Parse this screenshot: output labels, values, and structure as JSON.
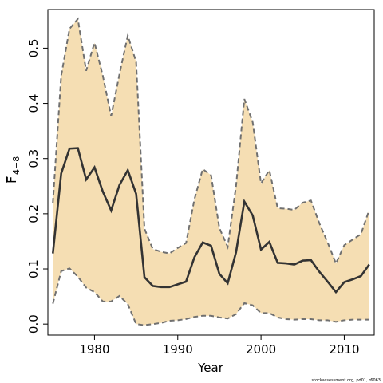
{
  "chart_data": {
    "type": "area",
    "xlabel": "Year",
    "ylabel_main": "F",
    "ylabel_sub": "4−8",
    "credit": "stockassessment.org, pd01, r6063",
    "xlim": [
      1974.4,
      2013.6
    ],
    "ylim": [
      -0.02,
      0.57
    ],
    "x_ticks": [
      1980,
      1990,
      2000,
      2010
    ],
    "y_ticks": [
      0.0,
      0.1,
      0.2,
      0.3,
      0.4,
      0.5
    ],
    "y_tick_labels": [
      "0.0",
      "0.1",
      "0.2",
      "0.3",
      "0.4",
      "0.5"
    ],
    "colors": {
      "band": "#f5deb3",
      "bound": "#707070",
      "estimate": "#333333"
    },
    "years": [
      1975,
      1976,
      1977,
      1978,
      1979,
      1980,
      1981,
      1982,
      1983,
      1984,
      1985,
      1986,
      1987,
      1988,
      1989,
      1990,
      1991,
      1992,
      1993,
      1994,
      1995,
      1996,
      1997,
      1998,
      1999,
      2000,
      2001,
      2002,
      2003,
      2004,
      2005,
      2006,
      2007,
      2008,
      2009,
      2010,
      2011,
      2012,
      2013
    ],
    "series": [
      {
        "role": "estimate",
        "values": [
          0.128,
          0.273,
          0.318,
          0.319,
          0.262,
          0.284,
          0.24,
          0.206,
          0.252,
          0.279,
          0.236,
          0.085,
          0.069,
          0.067,
          0.067,
          0.072,
          0.077,
          0.121,
          0.148,
          0.142,
          0.091,
          0.074,
          0.13,
          0.222,
          0.197,
          0.135,
          0.149,
          0.111,
          0.11,
          0.108,
          0.115,
          0.116,
          0.095,
          0.077,
          0.058,
          0.076,
          0.081,
          0.087,
          0.108
        ]
      },
      {
        "role": "upper",
        "values": [
          0.22,
          0.45,
          0.535,
          0.553,
          0.459,
          0.51,
          0.45,
          0.377,
          0.453,
          0.523,
          0.475,
          0.173,
          0.136,
          0.131,
          0.128,
          0.138,
          0.147,
          0.226,
          0.281,
          0.27,
          0.174,
          0.14,
          0.25,
          0.408,
          0.366,
          0.255,
          0.279,
          0.21,
          0.209,
          0.207,
          0.22,
          0.224,
          0.183,
          0.148,
          0.11,
          0.143,
          0.153,
          0.163,
          0.207
        ]
      },
      {
        "role": "lower",
        "values": [
          0.037,
          0.096,
          0.101,
          0.086,
          0.066,
          0.058,
          0.041,
          0.041,
          0.051,
          0.036,
          0.0,
          -0.002,
          0.0,
          0.002,
          0.006,
          0.007,
          0.009,
          0.013,
          0.015,
          0.015,
          0.012,
          0.01,
          0.018,
          0.038,
          0.034,
          0.02,
          0.02,
          0.012,
          0.009,
          0.008,
          0.009,
          0.009,
          0.007,
          0.007,
          0.004,
          0.007,
          0.008,
          0.008,
          0.008
        ]
      }
    ]
  }
}
